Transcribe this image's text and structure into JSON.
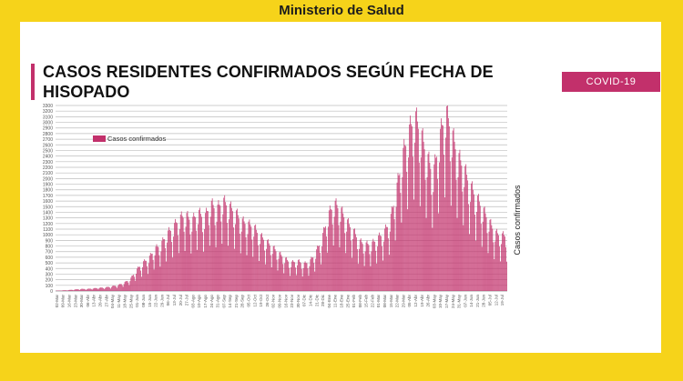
{
  "header": {
    "ministry": "Ministerio de Salud"
  },
  "panel": {
    "title": "CASOS RESIDENTES CONFIRMADOS SEGÚN FECHA DE HISOPADO",
    "badge": "COVID-19"
  },
  "colors": {
    "background": "#f6d31a",
    "accent": "#c2306b",
    "bar": "#c2306b"
  },
  "chart_data": {
    "type": "bar",
    "title": "CASOS RESIDENTES CONFIRMADOS SEGÚN FECHA DE HISOPADO",
    "xlabel": "",
    "ylabel": "Casos confirmados",
    "ylim": [
      0,
      3300
    ],
    "grid": true,
    "legend": "top-left",
    "series": [
      {
        "name": "Casos confirmados"
      }
    ],
    "y_ticks": [
      0,
      100,
      200,
      300,
      400,
      500,
      600,
      700,
      800,
      900,
      1000,
      1100,
      1200,
      1300,
      1400,
      1500,
      1600,
      1700,
      1800,
      1900,
      2000,
      2100,
      2200,
      2300,
      2400,
      2500,
      2600,
      2700,
      2800,
      2900,
      3000,
      3100,
      3200,
      3300
    ],
    "x_tick_labels": [
      "02-Mar",
      "09-Mar",
      "16-Mar",
      "23-Mar",
      "30-Mar",
      "06-Abr",
      "13-Abr",
      "20-Abr",
      "27-Abr",
      "04-May",
      "11-May",
      "18-May",
      "25-May",
      "01-Jun",
      "08-Jun",
      "15-Jun",
      "22-Jun",
      "29-Jun",
      "06-Jul",
      "13-Jul",
      "20-Jul",
      "27-Jul",
      "03-Ago",
      "10-Ago",
      "17-Ago",
      "24-Ago",
      "31-Ago",
      "07-Sep",
      "14-Sep",
      "21-Sep",
      "28-Sep",
      "05-Oct",
      "12-Oct",
      "19-Oct",
      "26-Oct",
      "02-Nov",
      "09-Nov",
      "16-Nov",
      "23-Nov",
      "30-Nov",
      "07-Dic",
      "14-Dic",
      "21-Dic",
      "28-Dic",
      "04-Ene",
      "11-Ene",
      "18-Ene",
      "25-Ene",
      "01-Feb",
      "08-Feb",
      "15-Feb",
      "22-Feb",
      "01-Mar",
      "08-Mar",
      "15-Mar",
      "22-Mar",
      "29-Mar",
      "05-Abr",
      "12-Abr",
      "19-Abr",
      "26-Abr",
      "03-May",
      "10-May",
      "17-May",
      "24-May",
      "31-May",
      "07-Jun",
      "14-Jun",
      "21-Jun",
      "28-Jun",
      "05-Jul",
      "12-Jul",
      "19-Jul"
    ],
    "weekly_values": [
      5,
      10,
      15,
      25,
      35,
      35,
      45,
      55,
      60,
      80,
      100,
      140,
      200,
      350,
      480,
      560,
      720,
      800,
      980,
      1100,
      1250,
      1300,
      1200,
      1350,
      1250,
      1500,
      1400,
      1550,
      1450,
      1350,
      1200,
      1150,
      1100,
      950,
      850,
      750,
      650,
      560,
      480,
      520,
      460,
      500,
      650,
      900,
      1300,
      1500,
      1400,
      1200,
      1050,
      850,
      800,
      800,
      900,
      1000,
      1200,
      1700,
      2300,
      2700,
      3000,
      2700,
      2300,
      2000,
      2600,
      3100,
      2700,
      2300,
      2100,
      1800,
      1600,
      1400,
      1200,
      1000,
      950
    ],
    "annotations": [
      "Casos confirmados"
    ]
  }
}
